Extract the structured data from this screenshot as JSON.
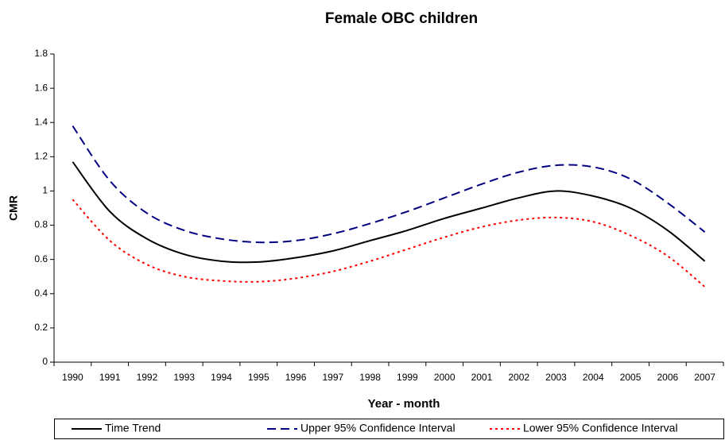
{
  "chart_data": {
    "type": "line",
    "title": "Female OBC children",
    "x_label": "Year - month",
    "y_label": "CMR",
    "categories": [
      "1990",
      "1991",
      "1992",
      "1993",
      "1994",
      "1995",
      "1996",
      "1997",
      "1998",
      "1999",
      "2000",
      "2001",
      "2002",
      "2003",
      "2004",
      "2005",
      "2006",
      "2007"
    ],
    "series": [
      {
        "name": "Time Trend",
        "color": "#000000",
        "dash": "solid",
        "values": [
          1.17,
          0.88,
          0.72,
          0.63,
          0.59,
          0.585,
          0.61,
          0.65,
          0.71,
          0.77,
          0.84,
          0.9,
          0.96,
          1.0,
          0.97,
          0.9,
          0.77,
          0.59
        ]
      },
      {
        "name": "Upper 95% Confidence Interval",
        "color": "#000080",
        "dash": "dashed",
        "values": [
          1.38,
          1.06,
          0.87,
          0.77,
          0.72,
          0.7,
          0.71,
          0.75,
          0.81,
          0.88,
          0.96,
          1.04,
          1.11,
          1.15,
          1.14,
          1.07,
          0.93,
          0.76
        ]
      },
      {
        "name": "Lower 95% Confidence Interval",
        "color": "#ff0000",
        "dash": "dotted",
        "values": [
          0.95,
          0.71,
          0.57,
          0.5,
          0.475,
          0.47,
          0.49,
          0.53,
          0.59,
          0.66,
          0.73,
          0.79,
          0.83,
          0.845,
          0.82,
          0.74,
          0.62,
          0.44
        ]
      }
    ],
    "ylim": [
      0,
      1.8
    ],
    "yticks": [
      0,
      0.2,
      0.4,
      0.6,
      0.8,
      1,
      1.2,
      1.4,
      1.6,
      1.8
    ],
    "grid": false,
    "legend": "bottom"
  }
}
